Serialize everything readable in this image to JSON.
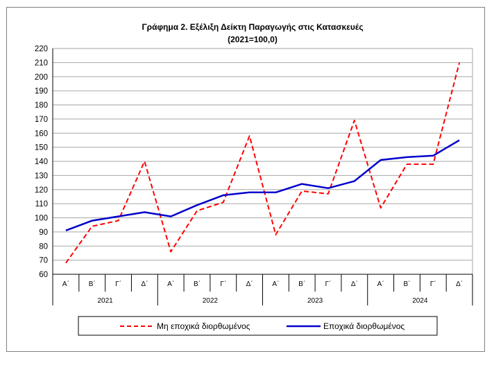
{
  "chart_data": {
    "type": "line",
    "title": "Γράφημα 2. Εξέλιξη  Δείκτη  Παραγωγής  στις Κατασκευές",
    "subtitle": "(2021=100,0)",
    "xlabel": "",
    "ylabel": "",
    "ylim": [
      60,
      220
    ],
    "ystep": 10,
    "grid": true,
    "legend_position": "bottom",
    "categories": [
      "Α΄",
      "Β΄",
      "Γ΄",
      "Δ΄",
      "Α΄",
      "Β΄",
      "Γ΄",
      "Δ΄",
      "Α΄",
      "Β΄",
      "Γ΄",
      "Δ΄",
      "Α΄",
      "Β΄",
      "Γ΄",
      "Δ΄"
    ],
    "years": [
      "2021",
      "2022",
      "2023",
      "2024"
    ],
    "series": [
      {
        "name": "Μη εποχικά διορθωμένος",
        "color": "#ff0000",
        "style": "dashed",
        "values": [
          68,
          94,
          98,
          140,
          76,
          105,
          111,
          158,
          88,
          119,
          117,
          169,
          107,
          138,
          138,
          210
        ]
      },
      {
        "name": "Εποχικά διορθωμένος",
        "color": "#0000cc",
        "style": "solid",
        "values": [
          91,
          98,
          101,
          104,
          101,
          109,
          116,
          118,
          118,
          124,
          121,
          126,
          141,
          143,
          144,
          155
        ]
      }
    ]
  }
}
